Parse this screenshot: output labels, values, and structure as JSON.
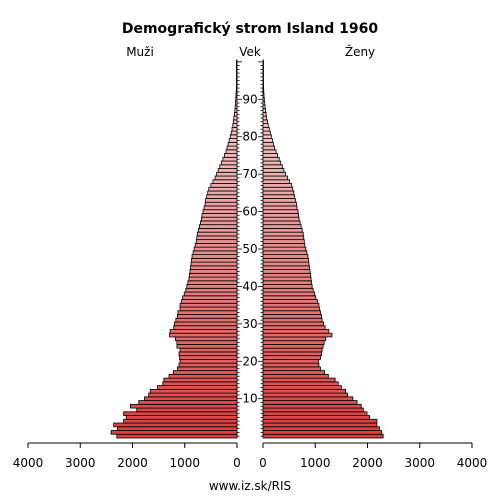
{
  "chart_data": {
    "type": "bar",
    "subtype": "population-pyramid",
    "title": "Demografický strom Island 1960",
    "left_label": "Muži",
    "center_label": "Vek",
    "right_label": "Ženy",
    "footer": "www.iz.sk/RIS",
    "x_ticks_left": [
      "4000",
      "3000",
      "2000",
      "1000",
      "0"
    ],
    "x_ticks_right": [
      "0",
      "1000",
      "2000",
      "3000",
      "4000"
    ],
    "xlim": [
      0,
      4000
    ],
    "age_range": [
      0,
      100
    ],
    "age_tick_values": [
      10,
      20,
      30,
      40,
      50,
      60,
      70,
      80,
      90
    ],
    "age_tick_labels": [
      "10",
      "20",
      "30",
      "40",
      "50",
      "60",
      "70",
      "80",
      "90"
    ],
    "ages": [
      0,
      1,
      2,
      3,
      4,
      5,
      6,
      7,
      8,
      9,
      10,
      11,
      12,
      13,
      14,
      15,
      16,
      17,
      18,
      19,
      20,
      21,
      22,
      23,
      24,
      25,
      26,
      27,
      28,
      29,
      30,
      31,
      32,
      33,
      34,
      35,
      36,
      37,
      38,
      39,
      40,
      41,
      42,
      43,
      44,
      45,
      46,
      47,
      48,
      49,
      50,
      51,
      52,
      53,
      54,
      55,
      56,
      57,
      58,
      59,
      60,
      61,
      62,
      63,
      64,
      65,
      66,
      67,
      68,
      69,
      70,
      71,
      72,
      73,
      74,
      75,
      76,
      77,
      78,
      79,
      80,
      81,
      82,
      83,
      84,
      85,
      86,
      87,
      88,
      89,
      90,
      91,
      92,
      93,
      94,
      95,
      96,
      97,
      98,
      99,
      100
    ],
    "colors": {
      "male_young": "#dd3c3c",
      "male_old": "#f2c0c0",
      "female_young": "#dd3c3c",
      "female_old": "#f2c0c0",
      "outline": "#000000"
    },
    "series": [
      {
        "name": "Muži",
        "values": [
          2300,
          2410,
          2290,
          2360,
          2170,
          2120,
          2170,
          1920,
          2040,
          1880,
          1770,
          1690,
          1660,
          1520,
          1420,
          1400,
          1300,
          1220,
          1140,
          1110,
          1090,
          1100,
          1110,
          1090,
          1150,
          1150,
          1180,
          1290,
          1280,
          1210,
          1200,
          1170,
          1140,
          1130,
          1090,
          1090,
          1060,
          1040,
          1010,
          980,
          960,
          940,
          920,
          910,
          900,
          890,
          880,
          870,
          860,
          840,
          820,
          800,
          780,
          770,
          760,
          740,
          720,
          700,
          680,
          670,
          650,
          630,
          610,
          600,
          580,
          560,
          540,
          500,
          460,
          420,
          390,
          360,
          330,
          300,
          270,
          240,
          210,
          190,
          170,
          150,
          130,
          110,
          95,
          80,
          70,
          60,
          50,
          40,
          35,
          30,
          25,
          20,
          15,
          12,
          10,
          8,
          6,
          4,
          3,
          2,
          1
        ]
      },
      {
        "name": "Ženy",
        "values": [
          2300,
          2270,
          2230,
          2180,
          2180,
          2040,
          1990,
          1920,
          1880,
          1800,
          1720,
          1620,
          1580,
          1500,
          1440,
          1380,
          1250,
          1180,
          1100,
          1070,
          1060,
          1100,
          1120,
          1130,
          1150,
          1170,
          1200,
          1320,
          1260,
          1190,
          1160,
          1130,
          1120,
          1100,
          1080,
          1070,
          1040,
          1010,
          990,
          960,
          940,
          930,
          920,
          910,
          900,
          890,
          880,
          870,
          860,
          840,
          820,
          800,
          790,
          780,
          770,
          750,
          730,
          710,
          690,
          680,
          670,
          650,
          640,
          620,
          600,
          590,
          570,
          550,
          510,
          470,
          430,
          400,
          370,
          340,
          310,
          280,
          250,
          220,
          200,
          180,
          160,
          140,
          120,
          100,
          85,
          70,
          60,
          50,
          40,
          33,
          25,
          20,
          15,
          12,
          10,
          8,
          6,
          4,
          3,
          2,
          1
        ]
      }
    ]
  }
}
